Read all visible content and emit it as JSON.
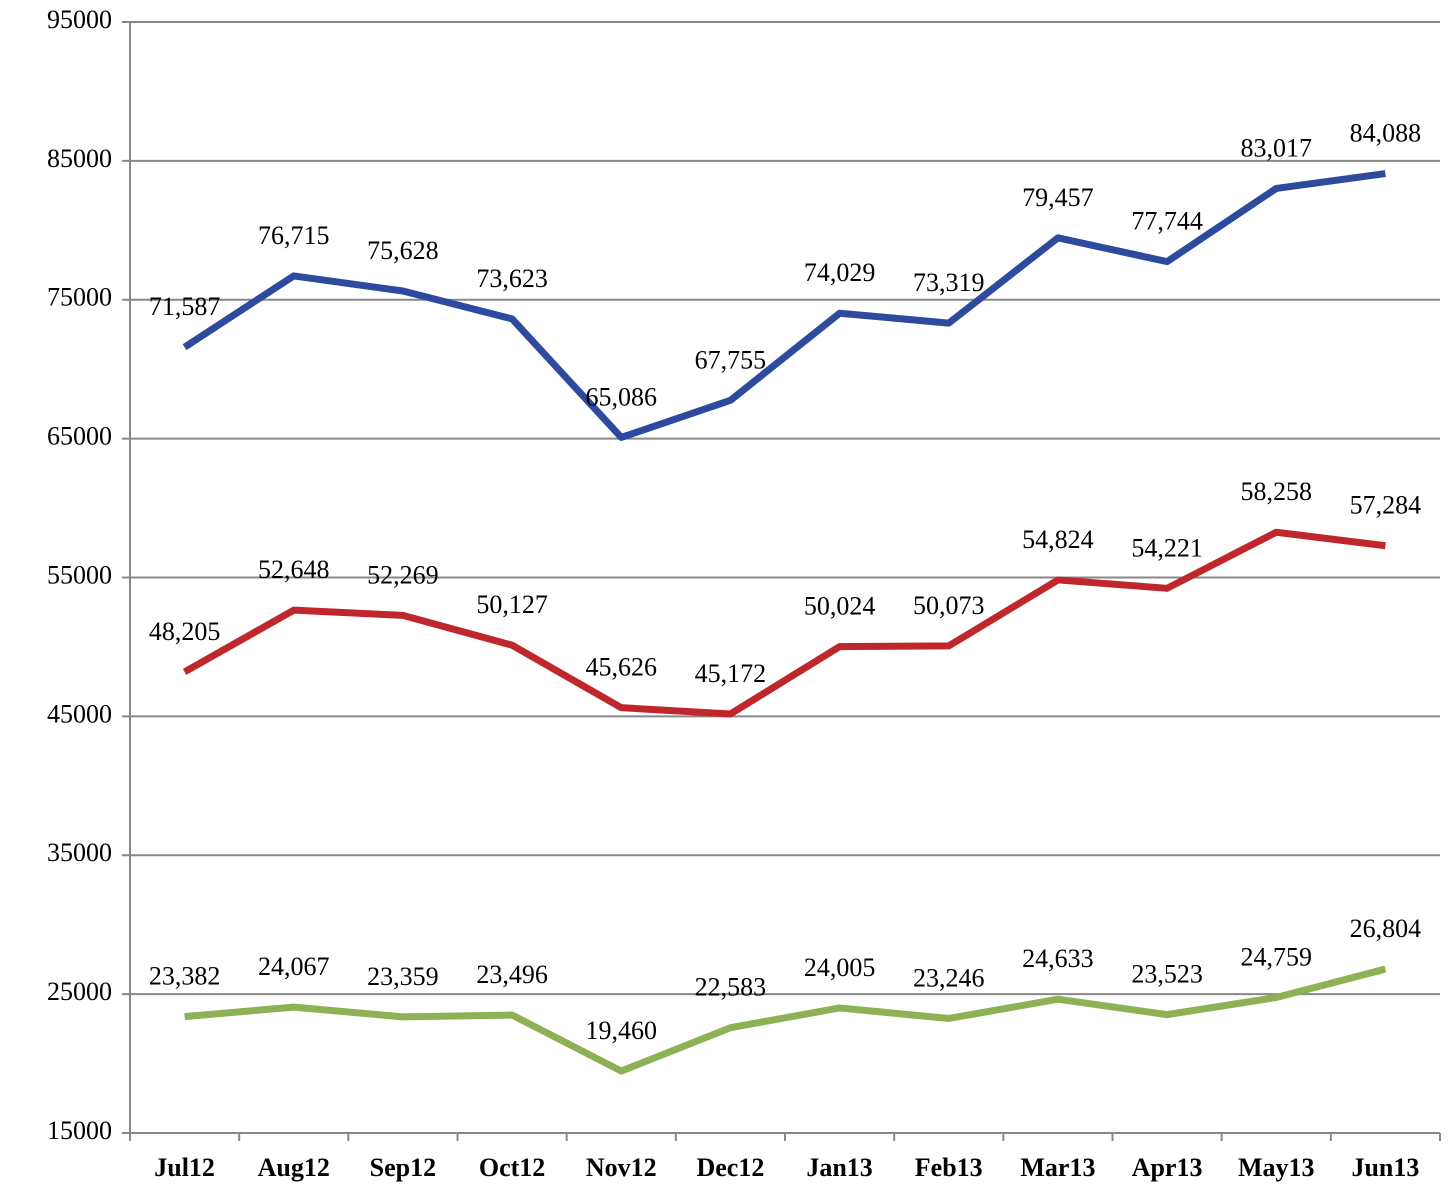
{
  "chart_data": {
    "type": "line",
    "categories": [
      "Jul12",
      "Aug12",
      "Sep12",
      "Oct12",
      "Nov12",
      "Dec12",
      "Jan13",
      "Feb13",
      "Mar13",
      "Apr13",
      "May13",
      "Jun13"
    ],
    "series": [
      {
        "color": "#2e4a9e",
        "values": [
          71587,
          76715,
          75628,
          73623,
          65086,
          67755,
          74029,
          73319,
          79457,
          77744,
          83017,
          84088
        ],
        "value_labels": [
          "71,587",
          "76,715",
          "75,628",
          "73,623",
          "65,086",
          "67,755",
          "74,029",
          "73,319",
          "79,457",
          "77,744",
          "83,017",
          "84,088"
        ]
      },
      {
        "color": "#c0272d",
        "values": [
          48205,
          52648,
          52269,
          50127,
          45626,
          45172,
          50024,
          50073,
          54824,
          54221,
          58258,
          57284
        ],
        "value_labels": [
          "48,205",
          "52,648",
          "52,269",
          "50,127",
          "45,626",
          "45,172",
          "50,024",
          "50,073",
          "54,824",
          "54,221",
          "58,258",
          "57,284"
        ]
      },
      {
        "color": "#8db255",
        "values": [
          23382,
          24067,
          23359,
          23496,
          19460,
          22583,
          24005,
          23246,
          24633,
          23523,
          24759,
          26804
        ],
        "value_labels": [
          "23,382",
          "24,067",
          "23,359",
          "23,496",
          "19,460",
          "22,583",
          "24,005",
          "23,246",
          "24,633",
          "23,523",
          "24,759",
          "26,804"
        ]
      }
    ],
    "ylim": [
      15000,
      95000
    ],
    "yticks": [
      15000,
      25000,
      35000,
      45000,
      55000,
      65000,
      75000,
      85000,
      95000
    ],
    "grid": true
  }
}
